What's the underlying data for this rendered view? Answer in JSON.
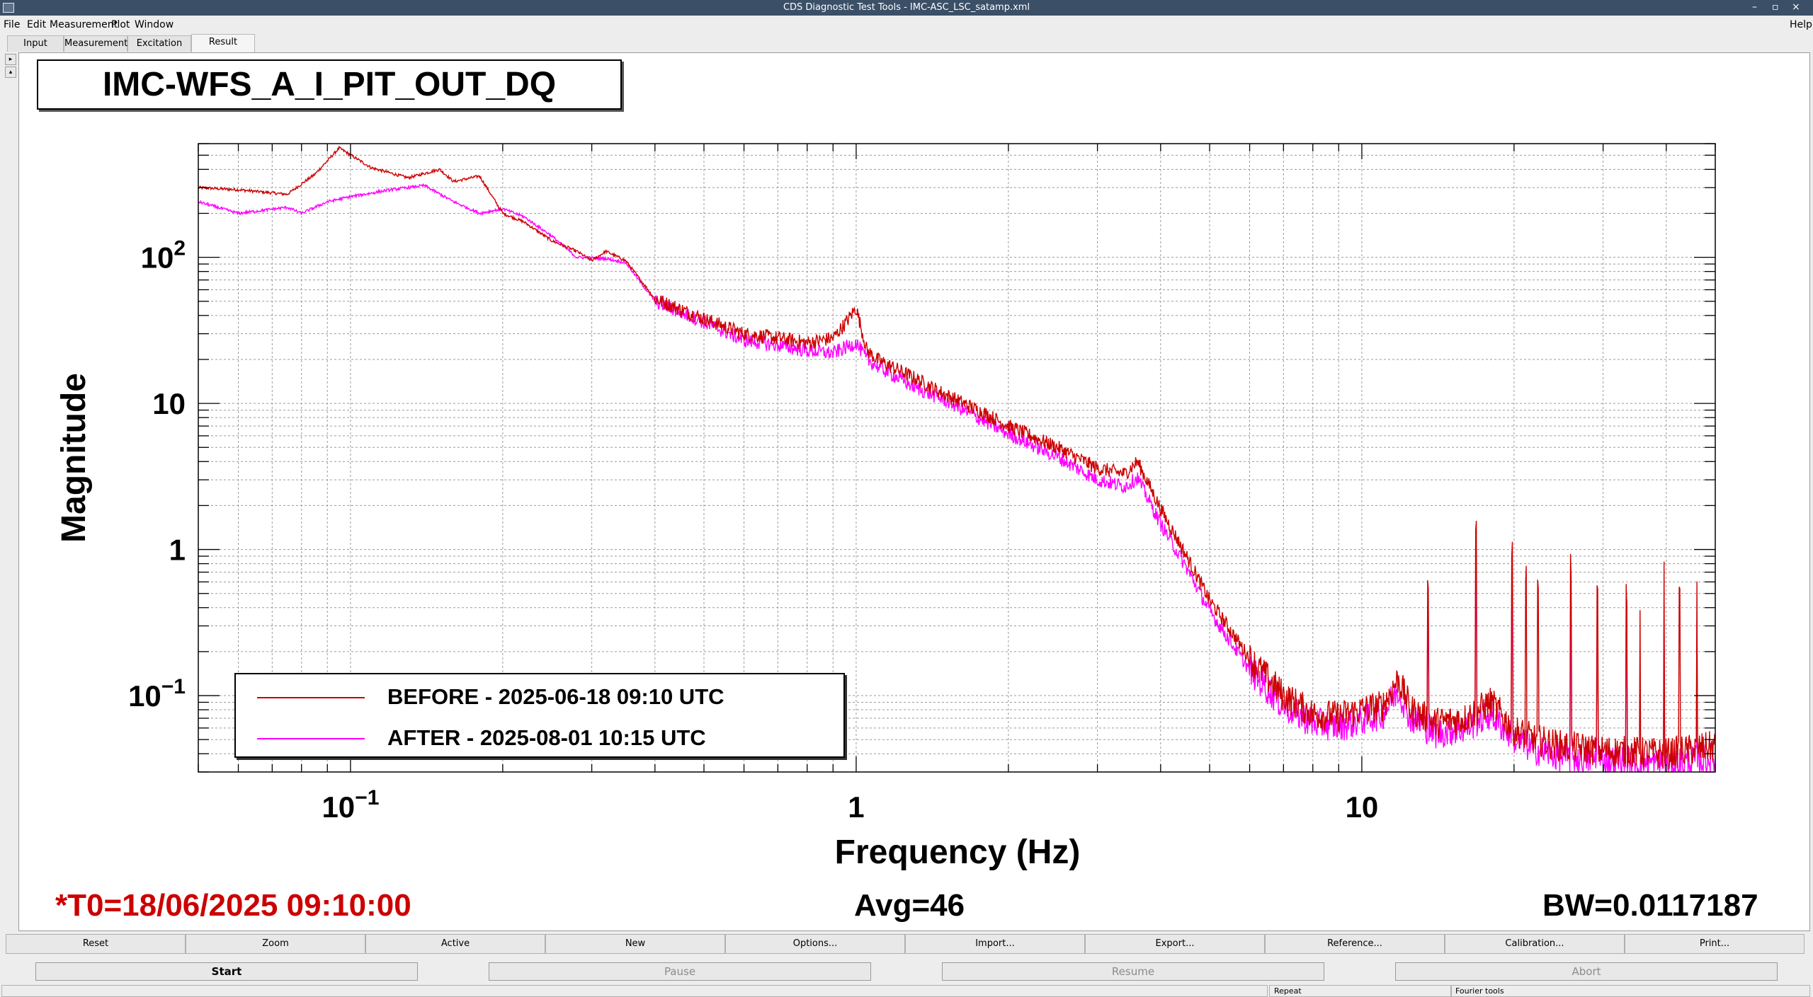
{
  "window": {
    "title": "CDS Diagnostic Test Tools - IMC-ASC_LSC_satamp.xml",
    "controls": [
      "–",
      "▫",
      "×"
    ]
  },
  "menu": {
    "items": [
      "File",
      "Edit",
      "Measurement",
      "Plot",
      "Window"
    ],
    "help": "Help"
  },
  "tabs": [
    {
      "label": "Input",
      "active": false
    },
    {
      "label": "Measurement",
      "active": false
    },
    {
      "label": "Excitation",
      "active": false
    },
    {
      "label": "Result",
      "active": true
    }
  ],
  "sidebar": {
    "expand": "▸",
    "collapse": "▴"
  },
  "plot_title": "IMC-WFS_A_I_PIT_OUT_DQ",
  "chart_data": {
    "type": "line",
    "xlabel": "Frequency (Hz)",
    "ylabel": "Magnitude",
    "xscale": "log",
    "yscale": "log",
    "xlim": [
      0.05,
      50
    ],
    "ylim": [
      0.03,
      600
    ],
    "grid": true,
    "legend_position": "bottom-left",
    "x_tick_labels": [
      {
        "value": 0.1,
        "base": "10",
        "exp": "−1"
      },
      {
        "value": 1,
        "base": "1",
        "exp": ""
      },
      {
        "value": 10,
        "base": "10",
        "exp": ""
      }
    ],
    "y_tick_labels": [
      {
        "value": 100,
        "base": "10",
        "exp": "2"
      },
      {
        "value": 10,
        "base": "10",
        "exp": ""
      },
      {
        "value": 1,
        "base": "1",
        "exp": ""
      },
      {
        "value": 0.1,
        "base": "10",
        "exp": "−1"
      }
    ],
    "series": [
      {
        "name": "BEFORE - 2025-06-18 09:10 UTC",
        "color": "#cc0000",
        "x": [
          0.05,
          0.06,
          0.075,
          0.085,
          0.095,
          0.11,
          0.13,
          0.15,
          0.16,
          0.18,
          0.2,
          0.22,
          0.25,
          0.28,
          0.3,
          0.32,
          0.35,
          0.4,
          0.45,
          0.5,
          0.6,
          0.7,
          0.8,
          0.9,
          0.95,
          1.0,
          1.05,
          1.1,
          1.3,
          1.5,
          1.8,
          2.0,
          2.5,
          3.0,
          3.4,
          3.6,
          4.0,
          4.5,
          5.0,
          6.0,
          7.0,
          8.0,
          9.0,
          10.0,
          11.0,
          11.8,
          12.5,
          14.0,
          16.0,
          18.0,
          20.0,
          22.0,
          25.0,
          30.0,
          40.0,
          50.0
        ],
        "y": [
          300,
          290,
          270,
          370,
          560,
          410,
          350,
          400,
          330,
          360,
          200,
          175,
          130,
          110,
          95,
          110,
          95,
          52,
          44,
          38,
          30,
          28,
          26,
          28,
          35,
          45,
          23,
          20,
          15,
          11.5,
          8.5,
          7.0,
          5.0,
          3.6,
          3.3,
          4.0,
          1.9,
          0.9,
          0.45,
          0.18,
          0.1,
          0.075,
          0.072,
          0.08,
          0.085,
          0.13,
          0.08,
          0.065,
          0.07,
          0.09,
          0.058,
          0.05,
          0.045,
          0.042,
          0.04,
          0.045
        ]
      },
      {
        "name": "AFTER - 2025-08-01 10:15 UTC",
        "color": "#ff00ff",
        "x": [
          0.05,
          0.06,
          0.075,
          0.08,
          0.09,
          0.1,
          0.12,
          0.14,
          0.16,
          0.18,
          0.2,
          0.22,
          0.25,
          0.28,
          0.32,
          0.35,
          0.4,
          0.45,
          0.5,
          0.6,
          0.7,
          0.8,
          0.9,
          0.95,
          1.0,
          1.05,
          1.1,
          1.3,
          1.5,
          1.8,
          2.0,
          2.5,
          3.0,
          3.4,
          3.6,
          4.0,
          4.5,
          5.0,
          6.0,
          7.0,
          8.0,
          9.0,
          10.0,
          11.0,
          11.8,
          12.5,
          14.0,
          16.0,
          18.0,
          20.0,
          22.0,
          25.0,
          30.0,
          40.0,
          50.0
        ],
        "y": [
          240,
          200,
          220,
          200,
          240,
          260,
          290,
          310,
          240,
          200,
          215,
          190,
          140,
          100,
          98,
          92,
          50,
          42,
          36,
          27,
          25,
          23,
          22,
          24,
          26,
          20,
          18,
          13,
          10.5,
          7.5,
          6.2,
          4.3,
          3.0,
          2.7,
          3.1,
          1.5,
          0.75,
          0.38,
          0.15,
          0.085,
          0.065,
          0.062,
          0.068,
          0.075,
          0.11,
          0.07,
          0.055,
          0.06,
          0.075,
          0.05,
          0.043,
          0.038,
          0.036,
          0.034,
          0.037
        ]
      }
    ]
  },
  "stats": {
    "t0": "*T0=18/06/2025 09:10:00",
    "avg": "Avg=46",
    "bw": "BW=0.0117187"
  },
  "buttons_row1": [
    "Reset",
    "Zoom",
    "Active",
    "New",
    "Options...",
    "Import...",
    "Export...",
    "Reference...",
    "Calibration...",
    "Print..."
  ],
  "buttons_row2": [
    {
      "label": "Start",
      "disabled": false
    },
    {
      "label": "Pause",
      "disabled": true
    },
    {
      "label": "Resume",
      "disabled": true
    },
    {
      "label": "Abort",
      "disabled": true
    }
  ],
  "status": {
    "repeat": "Repeat",
    "fourier": "Fourier tools"
  }
}
